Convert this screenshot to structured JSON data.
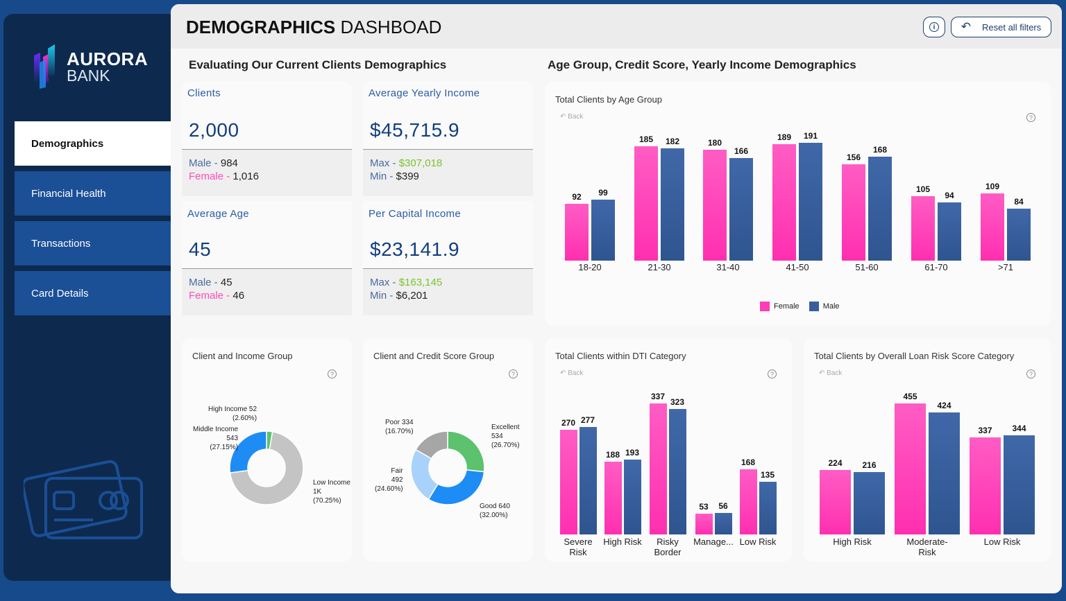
{
  "brand": {
    "name_line1": "AURORA",
    "name_line2": "BANK"
  },
  "nav": [
    {
      "label": "Demographics",
      "active": true
    },
    {
      "label": "Financial Health"
    },
    {
      "label": "Transactions"
    },
    {
      "label": "Card Details"
    }
  ],
  "header": {
    "title_bold": "DEMOGRAPHICS",
    "title_rest": " DASHBOAD",
    "info_icon": "info-icon",
    "reset_label": "Reset all filters"
  },
  "sections": {
    "left": "Evaluating Our Current Clients Demographics",
    "right": "Age Group, Credit Score, Yearly Income Demographics"
  },
  "kpis": {
    "clients": {
      "label": "Clients",
      "value": "2,000",
      "l1": "Male",
      "v1": "984",
      "l2": "Female",
      "v2": "1,016"
    },
    "income": {
      "label": "Average Yearly Income",
      "value": "$45,715.9",
      "l1": "Max",
      "v1": "$307,018",
      "l2": "Min",
      "v2": "$399"
    },
    "age": {
      "label": "Average Age",
      "value": "45",
      "l1": "Male",
      "v1": "45",
      "l2": "Female",
      "v2": "46"
    },
    "per_capita": {
      "label": "Per Capital Income",
      "value": "$23,141.9",
      "l1": "Max",
      "v1": "$163,145",
      "l2": "Min",
      "v2": "$6,201"
    }
  },
  "colors": {
    "female": "#ff3db5",
    "male": "#3a5f9c",
    "accent_green": "#7cc42a"
  },
  "back_label": "Back",
  "chart_data": [
    {
      "type": "bar",
      "title": "Total Clients by Age Group",
      "categories": [
        "18-20",
        "21-30",
        "31-40",
        "41-50",
        "51-60",
        "61-70",
        ">71"
      ],
      "series": [
        {
          "name": "Female",
          "values": [
            92,
            185,
            180,
            189,
            156,
            105,
            109
          ]
        },
        {
          "name": "Male",
          "values": [
            99,
            182,
            166,
            191,
            168,
            94,
            84
          ]
        }
      ],
      "legend": "bottom-center"
    },
    {
      "type": "pie",
      "title": "Client and Income Group",
      "slices": [
        {
          "label": "High Income",
          "value": 52,
          "display": "52",
          "pct": "2.60%",
          "color": "#5cc26d"
        },
        {
          "label": "Low Income",
          "value": 1405,
          "display": "1K",
          "pct": "70.25%",
          "color": "#c4c4c4"
        },
        {
          "label": "Middle Income",
          "value": 543,
          "display": "543",
          "pct": "27.15%",
          "color": "#1e8cf5"
        }
      ]
    },
    {
      "type": "pie",
      "title": "Client and Credit Score Group",
      "slices": [
        {
          "label": "Excellent",
          "value": 534,
          "pct": "26.70%",
          "color": "#5cc26d"
        },
        {
          "label": "Good",
          "value": 640,
          "pct": "32.00%",
          "color": "#1e8cf5"
        },
        {
          "label": "Fair",
          "value": 492,
          "pct": "24.60%",
          "color": "#a9d2fa"
        },
        {
          "label": "Poor",
          "value": 334,
          "pct": "16.70%",
          "color": "#a6a6a6"
        }
      ]
    },
    {
      "type": "bar",
      "title": "Total Clients within DTI Category",
      "categories": [
        "Severe Risk",
        "High Risk",
        "Risky Border",
        "Manage...",
        "Low Risk"
      ],
      "series": [
        {
          "name": "Female",
          "values": [
            270,
            188,
            337,
            53,
            168
          ]
        },
        {
          "name": "Male",
          "values": [
            277,
            193,
            323,
            56,
            135
          ]
        }
      ]
    },
    {
      "type": "bar",
      "title": "Total Clients by Overall Loan Risk Score Category",
      "categories": [
        "High Risk",
        "Moderate-Risk",
        "Low Risk"
      ],
      "series": [
        {
          "name": "Female",
          "values": [
            224,
            455,
            337
          ]
        },
        {
          "name": "Male",
          "values": [
            216,
            424,
            344
          ]
        }
      ]
    }
  ]
}
